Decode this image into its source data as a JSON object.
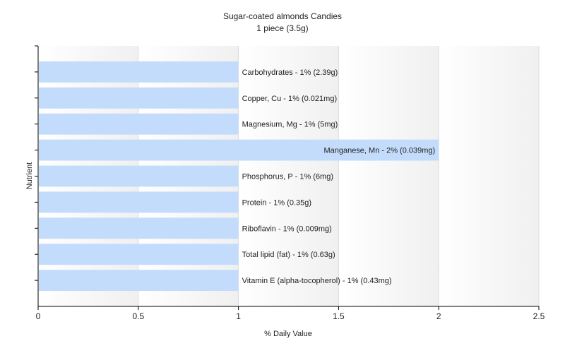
{
  "chart_data": {
    "type": "bar",
    "orientation": "horizontal",
    "title": "Sugar-coated almonds Candies",
    "subtitle": "1 piece (3.5g)",
    "xlabel": "% Daily Value",
    "ylabel": "Nutrient",
    "xlim": [
      0,
      2.5
    ],
    "xticks": [
      "0",
      "0.5",
      "1",
      "1.5",
      "2",
      "2.5"
    ],
    "grid": true,
    "bar_color": "#c4dcfc",
    "bars": [
      {
        "category": "Carbohydrates",
        "value": 1,
        "label": "Carbohydrates - 1% (2.39g)"
      },
      {
        "category": "Copper, Cu",
        "value": 1,
        "label": "Copper, Cu - 1% (0.021mg)"
      },
      {
        "category": "Magnesium, Mg",
        "value": 1,
        "label": "Magnesium, Mg - 1% (5mg)"
      },
      {
        "category": "Manganese, Mn",
        "value": 2,
        "label": "Manganese, Mn - 2% (0.039mg)"
      },
      {
        "category": "Phosphorus, P",
        "value": 1,
        "label": "Phosphorus, P - 1% (6mg)"
      },
      {
        "category": "Protein",
        "value": 1,
        "label": "Protein - 1% (0.35g)"
      },
      {
        "category": "Riboflavin",
        "value": 1,
        "label": "Riboflavin - 1% (0.009mg)"
      },
      {
        "category": "Total lipid (fat)",
        "value": 1,
        "label": "Total lipid (fat) - 1% (0.63g)"
      },
      {
        "category": "Vitamin E (alpha-tocopherol)",
        "value": 1,
        "label": "Vitamin E (alpha-tocopherol) - 1% (0.43mg)"
      }
    ]
  }
}
